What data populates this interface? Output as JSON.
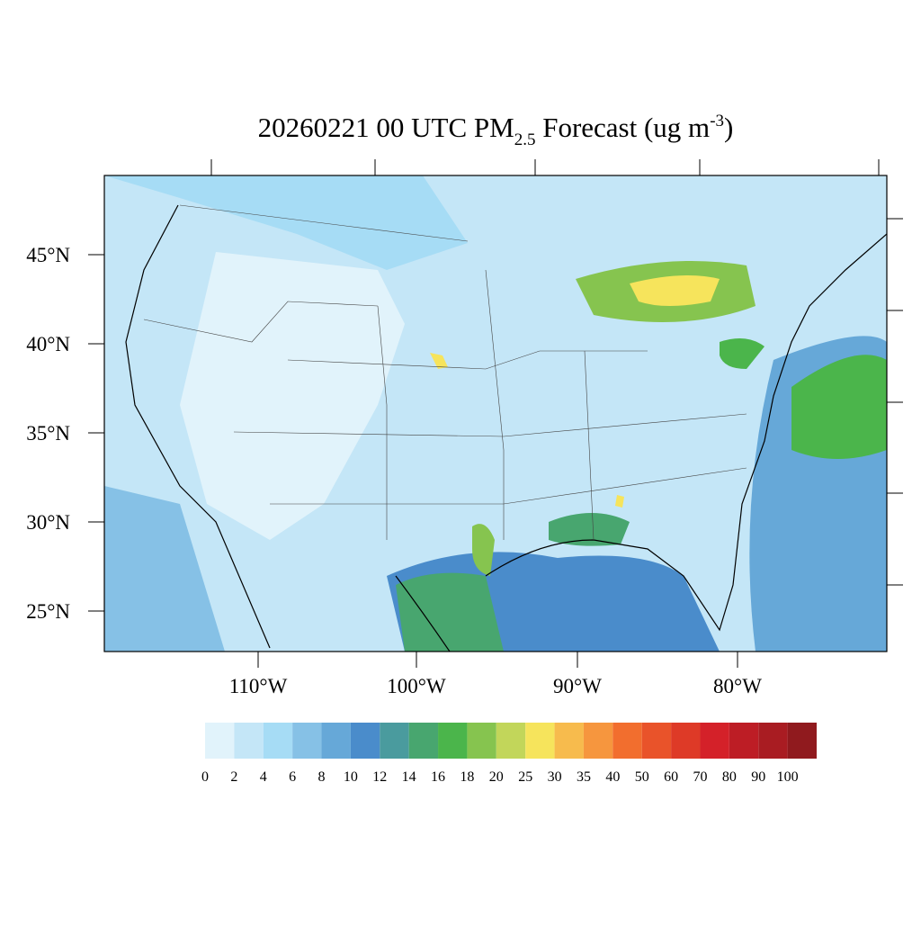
{
  "header": {
    "title": {
      "prefix": "20260221 00 UTC PM",
      "subscript": "2.5",
      "middle": " Forecast (ug m",
      "superscript": "-3",
      "suffix": ")"
    }
  },
  "map": {
    "lat_labels": [
      "45°N",
      "40°N",
      "35°N",
      "30°N",
      "25°N"
    ],
    "lon_labels": [
      "110°W",
      "100°W",
      "90°W",
      "80°W"
    ]
  },
  "colorbar": {
    "levels": [
      0,
      2,
      4,
      6,
      8,
      10,
      12,
      14,
      16,
      18,
      20,
      25,
      30,
      35,
      40,
      50,
      60,
      70,
      80,
      90,
      100
    ],
    "colors": [
      "#e1f3fb",
      "#c4e6f7",
      "#a6dcf5",
      "#86c1e6",
      "#66a8d8",
      "#4a8ccb",
      "#4a9b9e",
      "#48a66f",
      "#4bb54b",
      "#86c44f",
      "#c2d65a",
      "#f6e45c",
      "#f7bb4d",
      "#f6963e",
      "#f26e2e",
      "#e9532a",
      "#de3a27",
      "#d42129",
      "#bd1d25",
      "#a91c22",
      "#901a1e"
    ]
  }
}
